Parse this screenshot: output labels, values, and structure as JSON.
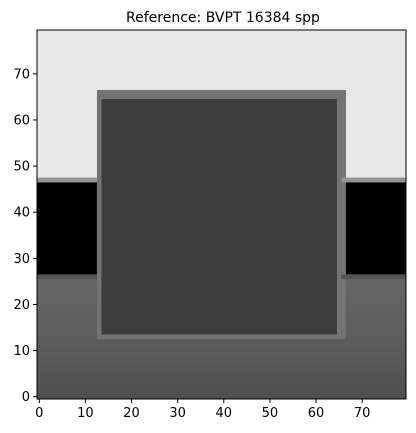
{
  "chart_data": {
    "type": "heatmap",
    "title": "Reference: BVPT 16384 spp",
    "xlabel": "",
    "ylabel": "",
    "xlim": [
      -0.5,
      79.5
    ],
    "ylim": [
      -0.5,
      79.5
    ],
    "x_ticks": [
      0,
      10,
      20,
      30,
      40,
      50,
      60,
      70
    ],
    "y_ticks": [
      0,
      10,
      20,
      30,
      40,
      50,
      60,
      70
    ],
    "grid": false,
    "legend": "none",
    "colormap": "gray",
    "background_value": 0.91,
    "regions": [
      {
        "name": "back-wall",
        "x": [
          0,
          80
        ],
        "y": [
          47,
          80
        ],
        "value": 0.91
      },
      {
        "name": "floor",
        "x": [
          0,
          80
        ],
        "y": [
          0,
          27
        ],
        "value": 0.38
      },
      {
        "name": "dark-band-left",
        "x": [
          0,
          13
        ],
        "y": [
          27,
          47
        ],
        "value": 0.0
      },
      {
        "name": "dark-band-right",
        "x": [
          66,
          80
        ],
        "y": [
          27,
          47
        ],
        "value": 0.0
      },
      {
        "name": "block-halo",
        "x": [
          13,
          67
        ],
        "y": [
          13,
          67
        ],
        "value": 0.45
      },
      {
        "name": "block",
        "x": [
          14,
          65
        ],
        "y": [
          14,
          65
        ],
        "value": 0.24
      }
    ],
    "edge_values": {
      "wall_edge_row": 0.58,
      "band_edge": 0.33
    }
  }
}
